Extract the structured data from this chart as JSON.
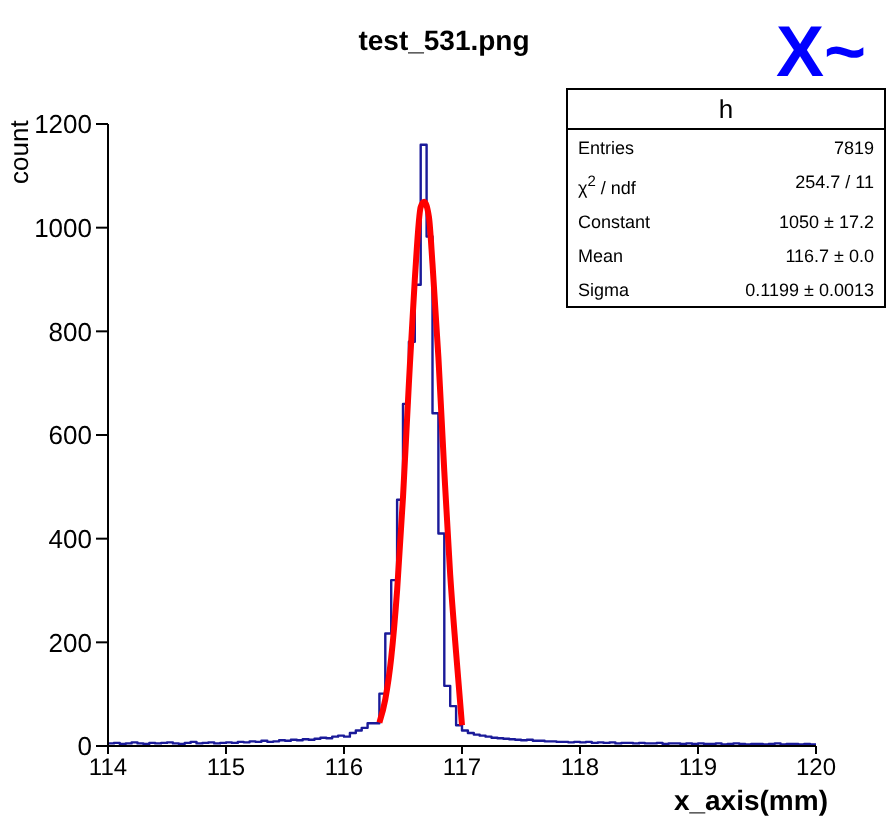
{
  "chart_data": {
    "type": "histogram",
    "title": "test_531.png",
    "xlabel": "x_axis(mm)",
    "ylabel": "count",
    "color": "#1a1a99",
    "bins": [
      114,
      114.05,
      114.1,
      114.15,
      114.2,
      114.25,
      114.3,
      114.35,
      114.4,
      114.45,
      114.5,
      114.55,
      114.6,
      114.65,
      114.7,
      114.75,
      114.8,
      114.85,
      114.9,
      114.95,
      115,
      115.05,
      115.1,
      115.15,
      115.2,
      115.25,
      115.3,
      115.35,
      115.4,
      115.45,
      115.5,
      115.55,
      115.6,
      115.65,
      115.7,
      115.75,
      115.8,
      115.85,
      115.9,
      115.95,
      116,
      116.05,
      116.1,
      116.15,
      116.2,
      116.25,
      116.3,
      116.35,
      116.4,
      116.45,
      116.5,
      116.55,
      116.6,
      116.65,
      116.7,
      116.75,
      116.8,
      116.85,
      116.9,
      116.95,
      117,
      117.05,
      117.1,
      117.15,
      117.2,
      117.25,
      117.3,
      117.35,
      117.4,
      117.45,
      117.5,
      117.55,
      117.6,
      117.65,
      117.7,
      117.75,
      117.8,
      117.85,
      117.9,
      117.95,
      118,
      118.05,
      118.1,
      118.15,
      118.2,
      118.25,
      118.3,
      118.35,
      118.4,
      118.45,
      118.5,
      118.55,
      118.6,
      118.65,
      118.7,
      118.75,
      118.8,
      118.85,
      118.9,
      118.95,
      119,
      119.05,
      119.1,
      119.15,
      119.2,
      119.25,
      119.3,
      119.35,
      119.4,
      119.45,
      119.5,
      119.55,
      119.6,
      119.65,
      119.7,
      119.75,
      119.8,
      119.85,
      119.9,
      119.95,
      120
    ],
    "values": [
      5,
      6,
      4,
      5,
      7,
      5,
      4,
      6,
      5,
      6,
      7,
      5,
      4,
      6,
      8,
      5,
      6,
      7,
      5,
      6,
      7,
      6,
      8,
      7,
      9,
      8,
      10,
      8,
      9,
      11,
      10,
      12,
      11,
      13,
      12,
      14,
      16,
      15,
      18,
      20,
      18,
      25,
      30,
      35,
      44,
      44,
      101,
      217,
      320,
      475,
      660,
      780,
      890,
      1160,
      983,
      642,
      410,
      116,
      77,
      40,
      30,
      25,
      22,
      20,
      18,
      16,
      15,
      14,
      13,
      12,
      11,
      12,
      10,
      10,
      9,
      9,
      8,
      8,
      7,
      8,
      7,
      8,
      6,
      7,
      6,
      7,
      5,
      6,
      6,
      5,
      6,
      5,
      5,
      6,
      4,
      5,
      5,
      4,
      5,
      4,
      5,
      4,
      4,
      5,
      3,
      4,
      5,
      4,
      3,
      4,
      4,
      3,
      4,
      5,
      3,
      4,
      4,
      3,
      4,
      3
    ],
    "series": [
      {
        "type": "line",
        "color": "#ff0000",
        "x": [
          116.3,
          116.35,
          116.4,
          116.45,
          116.5,
          116.55,
          116.6,
          116.65,
          116.68,
          116.72,
          116.75,
          116.8,
          116.85,
          116.9,
          116.95,
          117
        ],
        "values": [
          45,
          90,
          170,
          300,
          480,
          700,
          900,
          1040,
          1050,
          1020,
          930,
          750,
          530,
          330,
          180,
          40
        ]
      }
    ],
    "xlim": [
      114,
      120
    ],
    "xticks": [
      114,
      115,
      116,
      117,
      118,
      119,
      120
    ],
    "ylim": [
      0,
      1200
    ],
    "yticks": [
      0,
      200,
      400,
      600,
      800,
      1000,
      1200
    ],
    "annotations": [
      "h",
      "Entries",
      "7819",
      "χ$^{2}$ / ndf",
      "254.7 / 11",
      "Constant",
      "1050 ± 17.2",
      "Mean",
      "116.7 ± 0.0",
      "Sigma",
      "0.1199 ± 0.0013",
      "X~"
    ]
  }
}
